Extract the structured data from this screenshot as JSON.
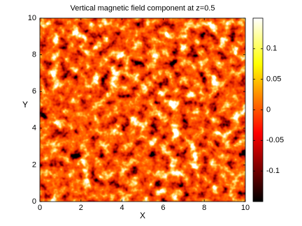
{
  "chart_data": {
    "type": "heatmap",
    "title": "Vertical magnetic field component at z=0.5",
    "x_label": "X",
    "y_label": "Y",
    "xlim": [
      0,
      10
    ],
    "xticks": [
      0,
      2,
      4,
      6,
      8,
      10
    ],
    "ylim": [
      0,
      10
    ],
    "yticks": [
      0,
      2,
      4,
      6,
      8,
      10
    ],
    "colormap": "hot",
    "clim": [
      -0.15,
      0.15
    ],
    "cticks": [
      -0.1,
      -0.05,
      0,
      0.05,
      0.1
    ]
  }
}
